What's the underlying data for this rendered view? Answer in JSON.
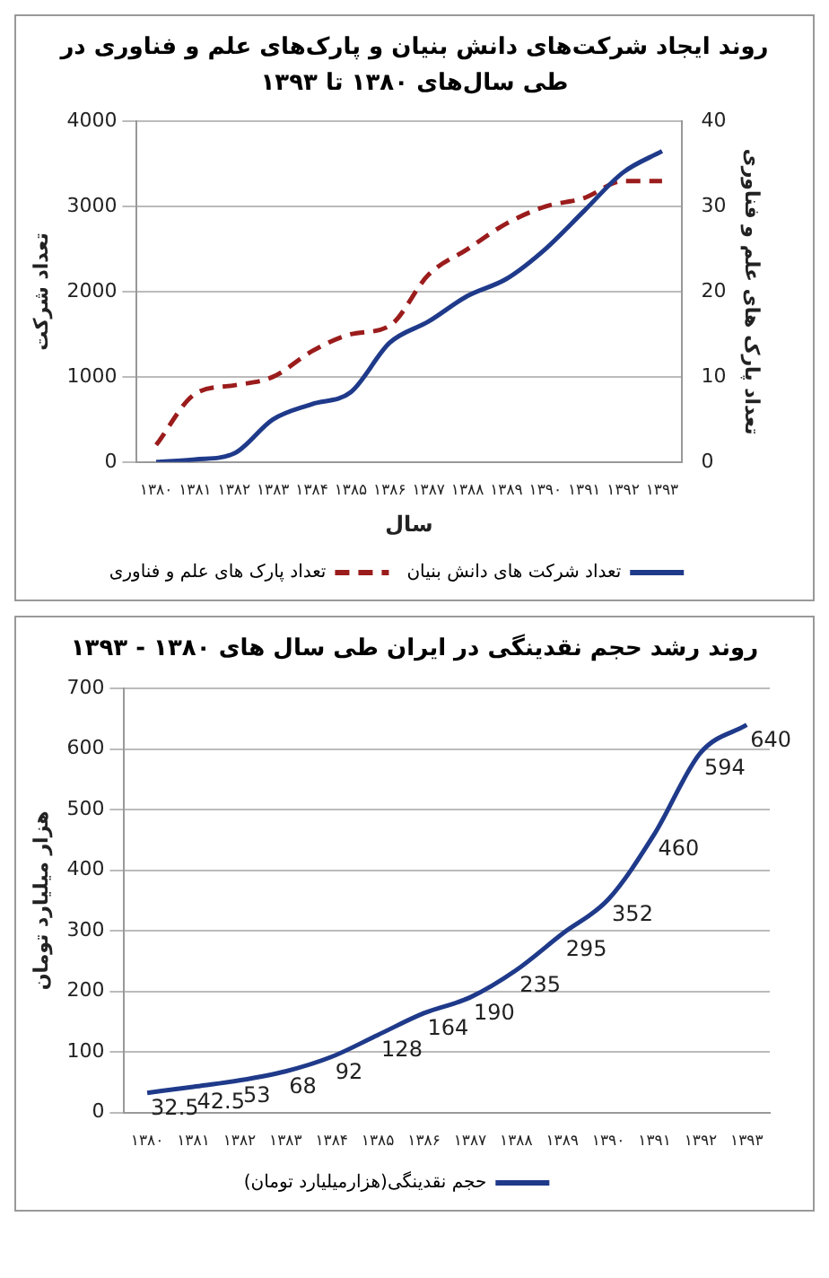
{
  "chart_data": [
    {
      "type": "line",
      "title": "روند ایجاد شرکت‌های دانش بنیان و پارک‌های علم و فناوری در طی سال‌های ۱۳۸۰ تا ۱۳۹۳",
      "xlabel": "سال",
      "ylabel": "تعداد شرکت",
      "y2label": "تعداد پارک های علم و فناوری",
      "categories": [
        "۱۳۸۰",
        "۱۳۸۱",
        "۱۳۸۲",
        "۱۳۸۳",
        "۱۳۸۴",
        "۱۳۸۵",
        "۱۳۸۶",
        "۱۳۸۷",
        "۱۳۸۸",
        "۱۳۸۹",
        "۱۳۹۰",
        "۱۳۹۱",
        "۱۳۹۲",
        "۱۳۹۳"
      ],
      "series": [
        {
          "name": "تعداد شرکت های دانش بنیان",
          "color": "#1f3a8a",
          "line_style": "solid",
          "values": [
            0,
            30,
            100,
            500,
            680,
            820,
            1400,
            1650,
            1950,
            2150,
            2500,
            2950,
            3400,
            3650
          ]
        },
        {
          "name": "تعداد پارک های علم و فناوری",
          "color": "#9b1c1c",
          "line_style": "dashed",
          "axis": "y2",
          "values": [
            2,
            8,
            9,
            10,
            13,
            15,
            16,
            22,
            25,
            28,
            30,
            31,
            33,
            33
          ]
        }
      ],
      "ylim": [
        0,
        4000
      ],
      "yticks": [
        0,
        1000,
        2000,
        3000,
        4000
      ],
      "y2lim": [
        0,
        40
      ],
      "y2ticks": [
        0,
        10,
        20,
        30,
        40
      ],
      "grid": "y",
      "legend": "bottom",
      "marker": "none"
    },
    {
      "type": "line",
      "title": "روند رشد حجم نقدینگی در ایران طی سال های ۱۳۸۰ - ۱۳۹۳",
      "ylabel": "هزار میلیارد تومان",
      "categories": [
        "۱۳۸۰",
        "۱۳۸۱",
        "۱۳۸۲",
        "۱۳۸۳",
        "۱۳۸۴",
        "۱۳۸۵",
        "۱۳۸۶",
        "۱۳۸۷",
        "۱۳۸۸",
        "۱۳۸۹",
        "۱۳۹۰",
        "۱۳۹۱",
        "۱۳۹۲",
        "۱۳۹۳"
      ],
      "series": [
        {
          "name": "حجم نقدینگی(هزارمیلیارد تومان)",
          "color": "#1f3a8a",
          "values": [
            32.5,
            42.5,
            53,
            68,
            92,
            128,
            164,
            190,
            235,
            295,
            352,
            460,
            594,
            640
          ]
        }
      ],
      "ylim": [
        0,
        700
      ],
      "yticks": [
        0,
        100,
        200,
        300,
        400,
        500,
        600,
        700
      ],
      "grid": "y",
      "legend": "bottom",
      "marker": "none",
      "data_labels": true
    }
  ]
}
